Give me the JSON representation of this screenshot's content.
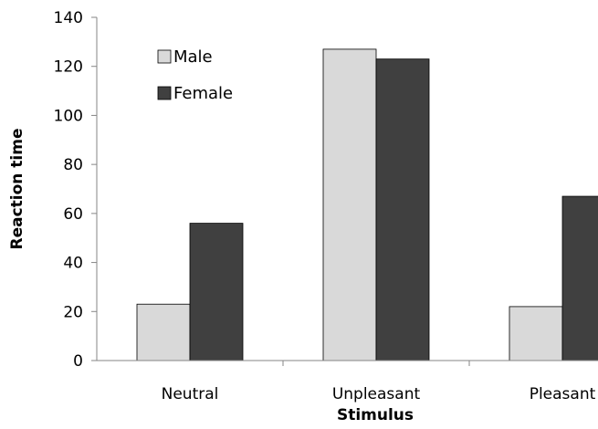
{
  "chart_data": {
    "type": "bar",
    "title": "",
    "xlabel": "Stimulus",
    "ylabel": "Reaction time",
    "categories": [
      "Neutral",
      "Unpleasant",
      "Pleasant"
    ],
    "series": [
      {
        "name": "Male",
        "values": [
          23,
          127,
          22
        ],
        "color": "#d9d9d9"
      },
      {
        "name": "Female",
        "values": [
          56,
          123,
          67
        ],
        "color": "#404040"
      }
    ],
    "ylim": [
      0,
      140
    ],
    "yticks": [
      "0",
      "20",
      "40",
      "60",
      "80",
      "100",
      "120",
      "140"
    ],
    "grid": false,
    "legend_position": "top-left"
  }
}
